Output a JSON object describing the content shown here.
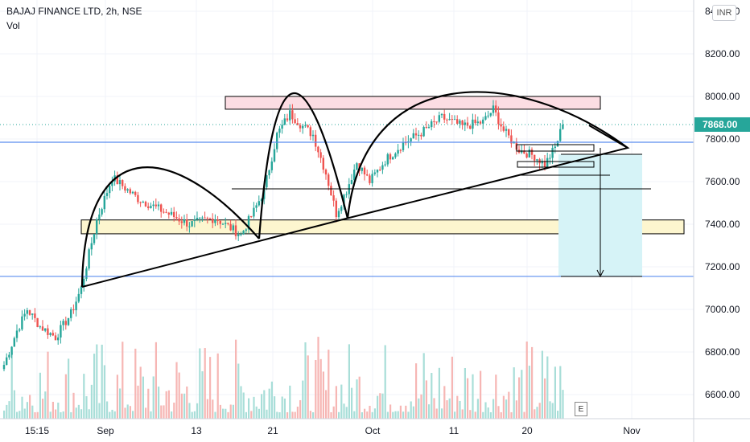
{
  "header": {
    "symbol_title": "BAJAJ FINANCE LTD, 2h, NSE",
    "volume_label": "Vol",
    "currency_badge": "INR",
    "events_button": "E"
  },
  "chart_data": {
    "type": "candlestick",
    "symbol": "BAJAJ FINANCE LTD",
    "timeframe": "2h",
    "exchange": "NSE",
    "currency": "INR",
    "y_axis_ticks": [
      "8400.00",
      "8200.00",
      "8000.00",
      "7800.00",
      "7600.00",
      "7400.00",
      "7200.00",
      "7000.00",
      "6800.00",
      "6600.00"
    ],
    "x_axis_ticks": [
      "15:15",
      "Sep",
      "13",
      "21",
      "Oct",
      "11",
      "20",
      "Nov"
    ],
    "ylim": [
      6500,
      8420
    ],
    "last_price": "7868.00",
    "last_price_value": 7868,
    "colors": {
      "up": "#26a69a",
      "down": "#ef5350",
      "price_line": "#26a69a",
      "horizontal_line": "#5b8def",
      "resistance_zone": "#fcdde3",
      "support_zone": "#fdf6cf",
      "target_box": "#d6f3f7"
    },
    "annotations": {
      "resistance_zone_price": [
        7940,
        8000
      ],
      "support_zone_price": [
        7355,
        7420
      ],
      "horizontal_lines_price": [
        7785,
        7155
      ],
      "target_price": 7155
    },
    "price_anchors": [
      {
        "bar": 0,
        "price": 6740
      },
      {
        "bar": 5,
        "price": 6900
      },
      {
        "bar": 9,
        "price": 7000
      },
      {
        "bar": 14,
        "price": 6920
      },
      {
        "bar": 20,
        "price": 6870
      },
      {
        "bar": 26,
        "price": 6980
      },
      {
        "bar": 30,
        "price": 7100
      },
      {
        "bar": 36,
        "price": 7420
      },
      {
        "bar": 42,
        "price": 7620
      },
      {
        "bar": 52,
        "price": 7520
      },
      {
        "bar": 62,
        "price": 7460
      },
      {
        "bar": 72,
        "price": 7400
      },
      {
        "bar": 82,
        "price": 7430
      },
      {
        "bar": 92,
        "price": 7350
      },
      {
        "bar": 97,
        "price": 7460
      },
      {
        "bar": 101,
        "price": 7560
      },
      {
        "bar": 106,
        "price": 7820
      },
      {
        "bar": 111,
        "price": 7920
      },
      {
        "bar": 116,
        "price": 7860
      },
      {
        "bar": 120,
        "price": 7820
      },
      {
        "bar": 125,
        "price": 7640
      },
      {
        "bar": 129,
        "price": 7450
      },
      {
        "bar": 133,
        "price": 7560
      },
      {
        "bar": 137,
        "price": 7690
      },
      {
        "bar": 142,
        "price": 7600
      },
      {
        "bar": 148,
        "price": 7700
      },
      {
        "bar": 155,
        "price": 7780
      },
      {
        "bar": 162,
        "price": 7830
      },
      {
        "bar": 170,
        "price": 7900
      },
      {
        "bar": 178,
        "price": 7860
      },
      {
        "bar": 186,
        "price": 7880
      },
      {
        "bar": 190,
        "price": 7940
      },
      {
        "bar": 194,
        "price": 7840
      },
      {
        "bar": 200,
        "price": 7750
      },
      {
        "bar": 206,
        "price": 7720
      },
      {
        "bar": 210,
        "price": 7680
      },
      {
        "bar": 214,
        "price": 7760
      },
      {
        "bar": 217,
        "price": 7868
      }
    ]
  }
}
